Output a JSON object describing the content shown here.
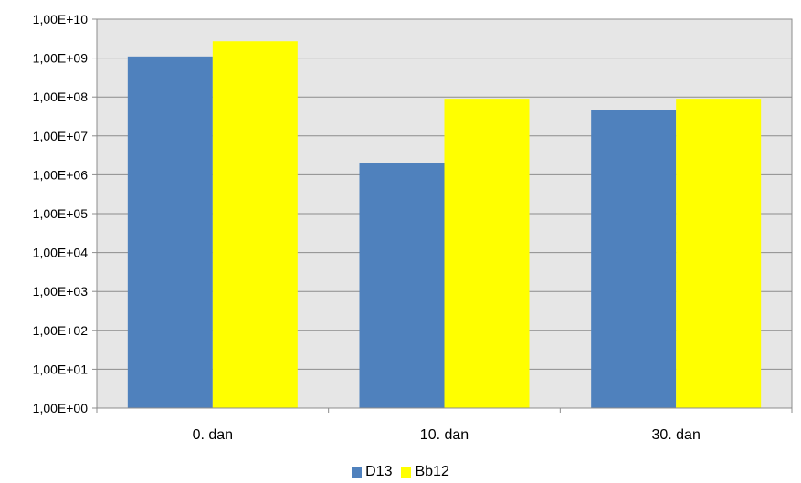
{
  "chart_data": {
    "type": "bar",
    "scale": "log10",
    "categories": [
      "0. dan",
      "10. dan",
      "30. dan"
    ],
    "series": [
      {
        "name": "D13",
        "color": "#4F81BD",
        "values": [
          1100000000.0,
          2000000.0,
          45000000.0
        ]
      },
      {
        "name": "Bb12",
        "color": "#FFFF00",
        "values": [
          2700000000.0,
          90000000.0,
          90000000.0
        ]
      }
    ],
    "yticks": [
      "1,00E+00",
      "1,00E+01",
      "1,00E+02",
      "1,00E+03",
      "1,00E+04",
      "1,00E+05",
      "1,00E+06",
      "1,00E+07",
      "1,00E+08",
      "1,00E+09",
      "1,00E+10"
    ],
    "ylim": [
      1,
      10000000000.0
    ],
    "grid": true,
    "plot_background": "#E6E6E6",
    "legend_position": "bottom"
  }
}
